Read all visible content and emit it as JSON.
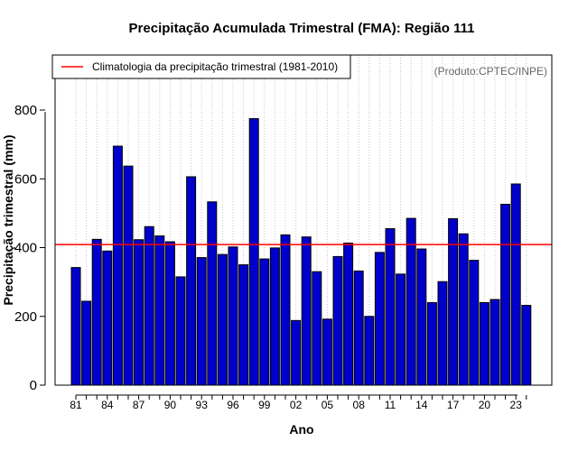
{
  "chart_data": {
    "type": "bar",
    "title": "Precipitação Acumulada Trimestral (FMA): Região 111",
    "xlabel": "Ano",
    "ylabel": "Precipitação trimestral (mm)",
    "source_note": "(Produto:CPTEC/INPE)",
    "ylim": [
      0,
      960
    ],
    "yticks": [
      0,
      200,
      400,
      600,
      800
    ],
    "grid": "vertical dotted at each year",
    "legend_position": "top-left",
    "categories": [
      "81",
      "82",
      "83",
      "84",
      "85",
      "86",
      "87",
      "88",
      "89",
      "90",
      "91",
      "92",
      "93",
      "94",
      "95",
      "96",
      "97",
      "98",
      "99",
      "00",
      "01",
      "02",
      "03",
      "04",
      "05",
      "06",
      "07",
      "08",
      "09",
      "10",
      "11",
      "12",
      "13",
      "14",
      "15",
      "16",
      "17",
      "18",
      "19",
      "20",
      "21",
      "22",
      "23",
      "24"
    ],
    "xtick_labels": [
      "81",
      "84",
      "87",
      "90",
      "93",
      "96",
      "99",
      "02",
      "05",
      "08",
      "11",
      "14",
      "17",
      "20",
      "23"
    ],
    "series": [
      {
        "name": "Precipitação trimestral",
        "color": "#0000cc",
        "values": [
          342,
          244,
          424,
          390,
          695,
          637,
          423,
          461,
          434,
          417,
          315,
          606,
          371,
          533,
          380,
          402,
          350,
          775,
          367,
          399,
          437,
          188,
          431,
          330,
          192,
          374,
          413,
          332,
          200,
          386,
          455,
          323,
          485,
          396,
          240,
          301,
          484,
          440,
          363,
          240,
          249,
          526,
          585,
          232
        ]
      }
    ],
    "reference_line": {
      "label": "Climatologia da precipitação trimestral (1981-2010)",
      "value": 409,
      "color": "#ff0000"
    }
  }
}
